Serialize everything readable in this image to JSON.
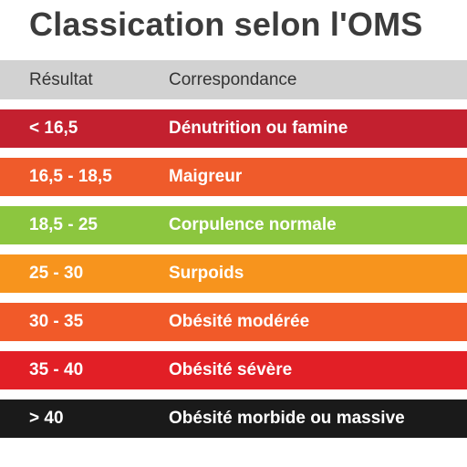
{
  "title": "Classication selon l'OMS",
  "columns": {
    "result": "Résultat",
    "correspondence": "Correspondance"
  },
  "rows": [
    {
      "result": "< 16,5",
      "label": "Dénutrition ou famine",
      "color": "#c3202f"
    },
    {
      "result": "16,5 - 18,5",
      "label": "Maigreur",
      "color": "#ef5b2b"
    },
    {
      "result": "18,5 - 25",
      "label": "Corpulence normale",
      "color": "#8cc63f"
    },
    {
      "result": "25 - 30",
      "label": "Surpoids",
      "color": "#f7941d"
    },
    {
      "result": "30 - 35",
      "label": "Obésité modérée",
      "color": "#f15a29"
    },
    {
      "result": "35 - 40",
      "label": "Obésité sévère",
      "color": "#e21f26"
    },
    {
      "result": "> 40",
      "label": "Obésité morbide ou massive",
      "color": "#1a1a1a"
    }
  ]
}
